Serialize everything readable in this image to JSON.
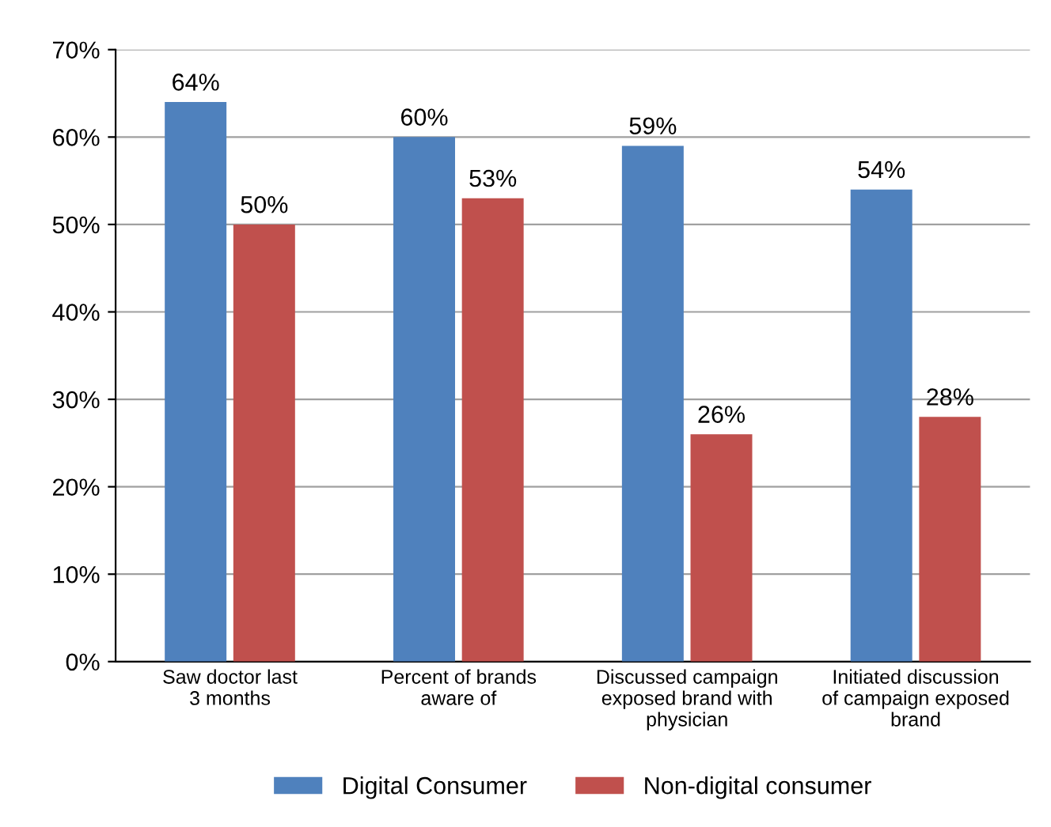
{
  "chart_data": {
    "type": "bar",
    "categories": [
      "Saw doctor last\n3 months",
      "Percent of brands\naware of",
      "Discussed campaign\nexposed brand with\nphysician",
      "Initiated discussion\nof campaign exposed\nbrand"
    ],
    "series": [
      {
        "name": "Digital Consumer",
        "color": "#4f81bd",
        "values": [
          64,
          60,
          59,
          54
        ],
        "value_labels": [
          "64%",
          "60%",
          "59%",
          "54%"
        ]
      },
      {
        "name": "Non-digital consumer",
        "color": "#c0504d",
        "values": [
          50,
          53,
          26,
          28
        ],
        "value_labels": [
          "50%",
          "53%",
          "26%",
          "28%"
        ]
      }
    ],
    "ylim": [
      0,
      70
    ],
    "yticks": [
      {
        "value": 0,
        "label": "0%"
      },
      {
        "value": 10,
        "label": "10%"
      },
      {
        "value": 20,
        "label": "20%"
      },
      {
        "value": 30,
        "label": "30%"
      },
      {
        "value": 40,
        "label": "40%"
      },
      {
        "value": 50,
        "label": "50%"
      },
      {
        "value": 60,
        "label": "60%"
      },
      {
        "value": 70,
        "label": "70%"
      }
    ],
    "grid": "y",
    "legend": "bottom"
  }
}
